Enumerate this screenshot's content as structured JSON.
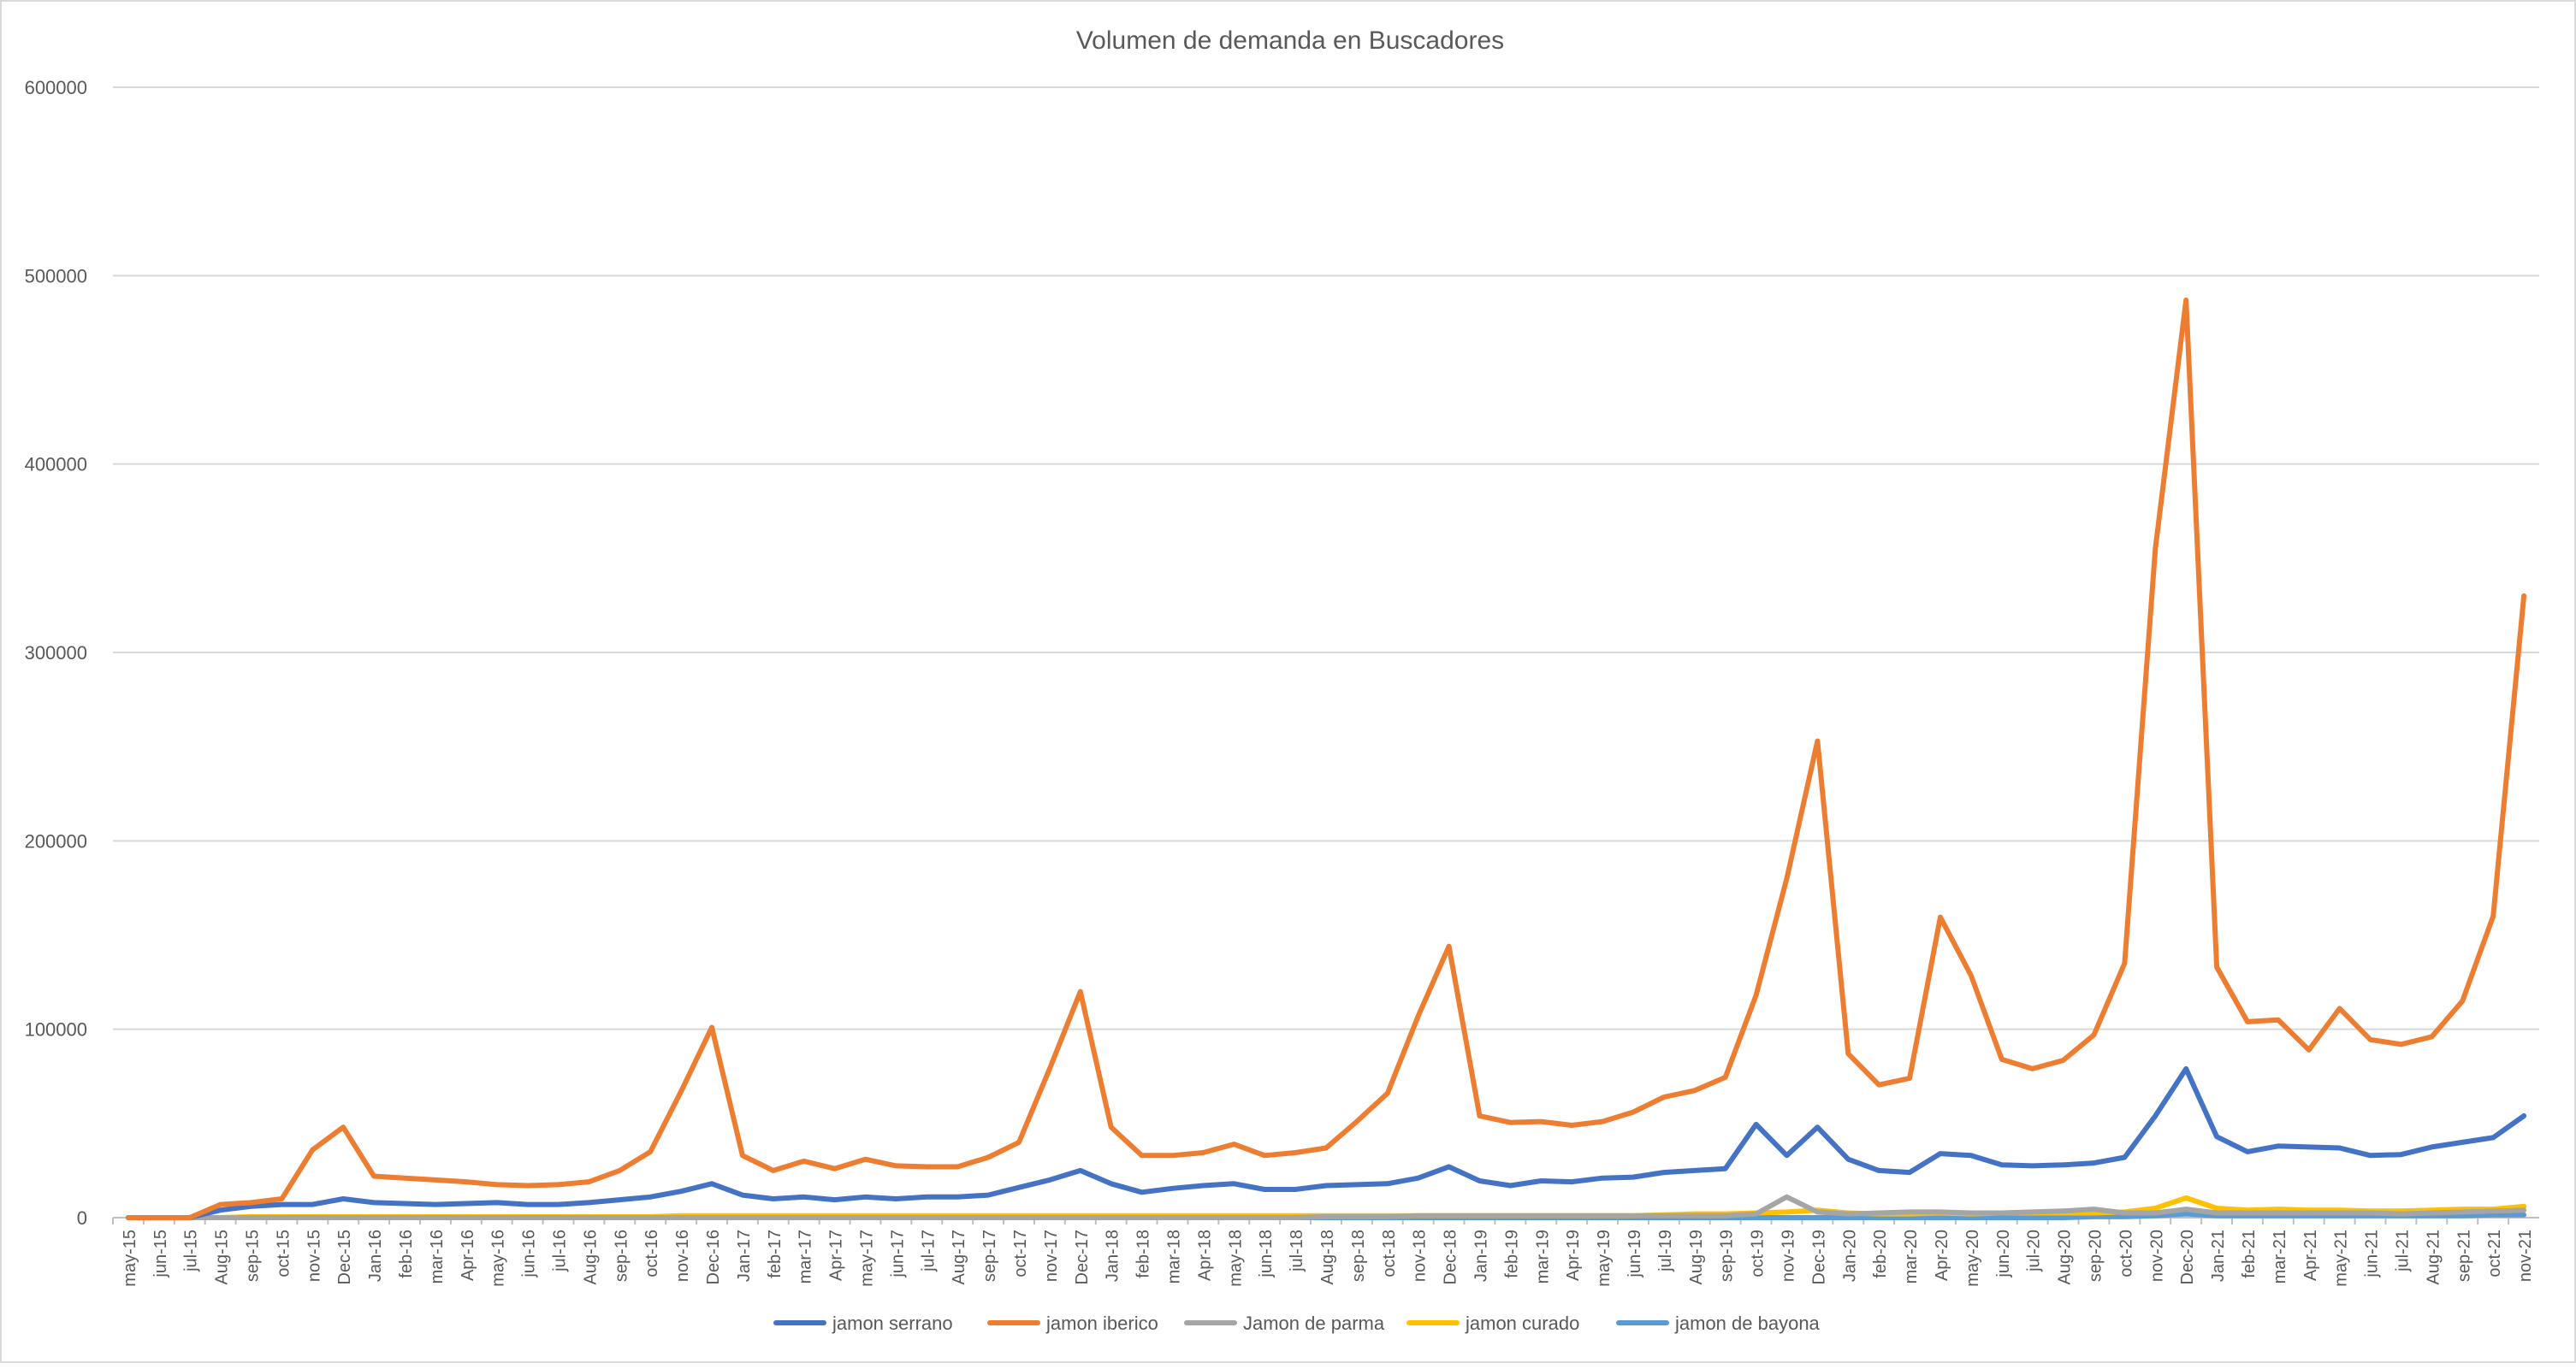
{
  "chart_data": {
    "type": "line",
    "title": "Volumen de demanda en Buscadores",
    "xlabel": "",
    "ylabel": "",
    "ylim": [
      0,
      600000
    ],
    "yticks": [
      0,
      100000,
      200000,
      300000,
      400000,
      500000,
      600000
    ],
    "grid": true,
    "legend": "bottom",
    "categories": [
      "may-15",
      "jun-15",
      "jul-15",
      "Aug-15",
      "sep-15",
      "oct-15",
      "nov-15",
      "Dec-15",
      "Jan-16",
      "feb-16",
      "mar-16",
      "Apr-16",
      "may-16",
      "jun-16",
      "jul-16",
      "Aug-16",
      "sep-16",
      "oct-16",
      "nov-16",
      "Dec-16",
      "Jan-17",
      "feb-17",
      "mar-17",
      "Apr-17",
      "may-17",
      "jun-17",
      "jul-17",
      "Aug-17",
      "sep-17",
      "oct-17",
      "nov-17",
      "Dec-17",
      "Jan-18",
      "feb-18",
      "mar-18",
      "Apr-18",
      "may-18",
      "jun-18",
      "jul-18",
      "Aug-18",
      "sep-18",
      "oct-18",
      "nov-18",
      "Dec-18",
      "Jan-19",
      "feb-19",
      "mar-19",
      "Apr-19",
      "may-19",
      "jun-19",
      "jul-19",
      "Aug-19",
      "sep-19",
      "oct-19",
      "nov-19",
      "Dec-19",
      "Jan-20",
      "feb-20",
      "mar-20",
      "Apr-20",
      "may-20",
      "jun-20",
      "jul-20",
      "Aug-20",
      "sep-20",
      "oct-20",
      "nov-20",
      "Dec-20",
      "Jan-21",
      "feb-21",
      "mar-21",
      "Apr-21",
      "may-21",
      "jun-21",
      "jul-21",
      "Aug-21",
      "sep-21",
      "oct-21",
      "nov-21"
    ],
    "series": [
      {
        "name": "jamon serrano",
        "color": "#4472c4",
        "values": [
          0,
          0,
          0,
          4000,
          6000,
          7000,
          7000,
          10000,
          8000,
          7500,
          7000,
          7500,
          8000,
          7000,
          7000,
          8000,
          9500,
          11000,
          14000,
          18000,
          12000,
          10000,
          11000,
          9500,
          11000,
          10000,
          11000,
          11000,
          12000,
          16000,
          20000,
          25000,
          18000,
          13500,
          15500,
          17000,
          18000,
          15000,
          15000,
          17000,
          17500,
          18000,
          21000,
          27000,
          19500,
          17000,
          19500,
          19000,
          21000,
          21500,
          24000,
          25000,
          26000,
          49500,
          33000,
          48000,
          31000,
          25000,
          24000,
          34000,
          33000,
          28000,
          27500,
          28000,
          29000,
          32000,
          54000,
          79000,
          43000,
          35000,
          38000,
          37500,
          37000,
          33000,
          33500,
          37500,
          40000,
          42500,
          54000
        ]
      },
      {
        "name": "jamon iberico",
        "color": "#ed7d31",
        "values": [
          0,
          0,
          0,
          7000,
          8000,
          10000,
          36000,
          48000,
          22000,
          21000,
          20000,
          19000,
          17500,
          17000,
          17500,
          19000,
          25000,
          35000,
          67000,
          101000,
          33000,
          25000,
          30000,
          26000,
          31000,
          27500,
          27000,
          27000,
          32000,
          40000,
          79000,
          120000,
          48000,
          33000,
          33000,
          34500,
          39000,
          33000,
          34500,
          37000,
          51000,
          66000,
          107000,
          144000,
          54000,
          50500,
          51000,
          49000,
          51000,
          56000,
          64000,
          67500,
          74500,
          118000,
          180000,
          253000,
          87000,
          70500,
          74000,
          159500,
          128500,
          84000,
          79000,
          83500,
          97000,
          135000,
          355000,
          487000,
          133000,
          104000,
          105000,
          89000,
          111000,
          94500,
          92000,
          96000,
          115000,
          160000,
          330000
        ]
      },
      {
        "name": "Jamon de parma",
        "color": "#a5a5a5",
        "values": [
          0,
          0,
          0,
          0,
          0,
          0,
          0,
          0,
          0,
          0,
          0,
          0,
          0,
          0,
          0,
          0,
          0,
          0,
          0,
          0,
          0,
          0,
          0,
          0,
          0,
          0,
          0,
          0,
          0,
          0,
          0,
          0,
          0,
          0,
          0,
          0,
          0,
          0,
          0,
          500,
          500,
          500,
          1000,
          1000,
          1000,
          1000,
          1000,
          1000,
          1000,
          1000,
          1000,
          1000,
          1000,
          2000,
          11000,
          3000,
          2000,
          2500,
          3000,
          3000,
          2500,
          2500,
          3000,
          3500,
          4500,
          2500,
          2500,
          4500,
          2500,
          2500,
          2500,
          2500,
          2500,
          2500,
          2000,
          2500,
          3000,
          3500,
          4000
        ]
      },
      {
        "name": "jamon curado",
        "color": "#ffc000",
        "values": [
          0,
          0,
          0,
          0,
          500,
          500,
          500,
          500,
          500,
          500,
          500,
          500,
          500,
          500,
          500,
          500,
          500,
          500,
          1000,
          1000,
          1000,
          1000,
          1000,
          1000,
          1000,
          1000,
          1000,
          1000,
          1000,
          1000,
          1000,
          1000,
          1000,
          1000,
          1000,
          1000,
          1000,
          1000,
          1000,
          1000,
          1000,
          1000,
          1000,
          1000,
          1000,
          1000,
          1000,
          1000,
          1000,
          1000,
          1500,
          2000,
          2000,
          2500,
          3000,
          4000,
          2500,
          2000,
          2000,
          2500,
          2000,
          2500,
          2500,
          2500,
          2500,
          3000,
          5000,
          10500,
          5000,
          4000,
          4500,
          4000,
          4000,
          3500,
          3500,
          4000,
          4500,
          4500,
          6000
        ]
      },
      {
        "name": "jamon de bayona",
        "color": "#5b9bd5",
        "values": [
          0,
          0,
          0,
          0,
          0,
          0,
          0,
          0,
          0,
          0,
          0,
          0,
          0,
          0,
          0,
          0,
          0,
          0,
          0,
          0,
          0,
          0,
          0,
          0,
          0,
          0,
          0,
          0,
          0,
          0,
          0,
          0,
          0,
          0,
          0,
          0,
          0,
          0,
          0,
          0,
          0,
          0,
          0,
          0,
          0,
          0,
          0,
          0,
          0,
          0,
          0,
          0,
          0,
          0,
          0,
          0,
          0,
          0,
          0,
          0,
          0,
          0,
          0,
          0,
          500,
          500,
          1000,
          2000,
          1000,
          1000,
          1000,
          1000,
          1000,
          1000,
          1000,
          1000,
          1000,
          1500,
          1500
        ]
      }
    ]
  }
}
